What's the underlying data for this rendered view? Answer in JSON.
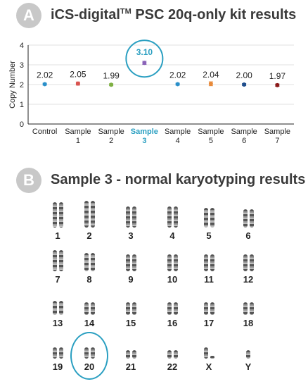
{
  "panel_a": {
    "badge": "A",
    "title_main": "iCS-digital",
    "title_sup": "TM",
    "title_rest": " PSC 20q-only kit results"
  },
  "panel_b": {
    "badge": "B",
    "title": "Sample 3 - normal karyotyping results"
  },
  "colors": {
    "highlight": "#2a9fc1",
    "badge": "#c8c8c8",
    "points": [
      "#2a8fc9",
      "#d9534f",
      "#7fb043",
      "#2a9fc1",
      "#2a8fc9",
      "#e88a3a",
      "#1f4e8c",
      "#8b1a1a"
    ],
    "highlight_point": "#8a63b8"
  },
  "chart_data": {
    "type": "scatter",
    "ylabel": "Copy Number",
    "ylim": [
      0,
      4
    ],
    "yticks": [
      "0",
      "1",
      "2",
      "3",
      "4"
    ],
    "categories": [
      {
        "line1": "Control",
        "line2": ""
      },
      {
        "line1": "Sample",
        "line2": "1"
      },
      {
        "line1": "Sample",
        "line2": "2"
      },
      {
        "line1": "Sample",
        "line2": "3"
      },
      {
        "line1": "Sample",
        "line2": "4"
      },
      {
        "line1": "Sample",
        "line2": "5"
      },
      {
        "line1": "Sample",
        "line2": "6"
      },
      {
        "line1": "Sample",
        "line2": "7"
      }
    ],
    "values": [
      2.02,
      2.05,
      1.99,
      3.1,
      2.02,
      2.04,
      2.0,
      1.97
    ],
    "labels": [
      "2.02",
      "2.05",
      "1.99",
      "3.10",
      "2.02",
      "2.04",
      "2.00",
      "1.97"
    ],
    "error": [
      0.05,
      0.08,
      0.05,
      0.08,
      0.05,
      0.1,
      0.05,
      0.06
    ],
    "highlight_index": 3
  },
  "karyotype": {
    "rows": [
      [
        "1",
        "2",
        "3",
        "4",
        "5",
        "6"
      ],
      [
        "7",
        "8",
        "9",
        "10",
        "11",
        "12"
      ],
      [
        "13",
        "14",
        "15",
        "16",
        "17",
        "18"
      ],
      [
        "19",
        "20",
        "21",
        "22",
        "X",
        "Y"
      ]
    ],
    "highlight_label": "20"
  }
}
